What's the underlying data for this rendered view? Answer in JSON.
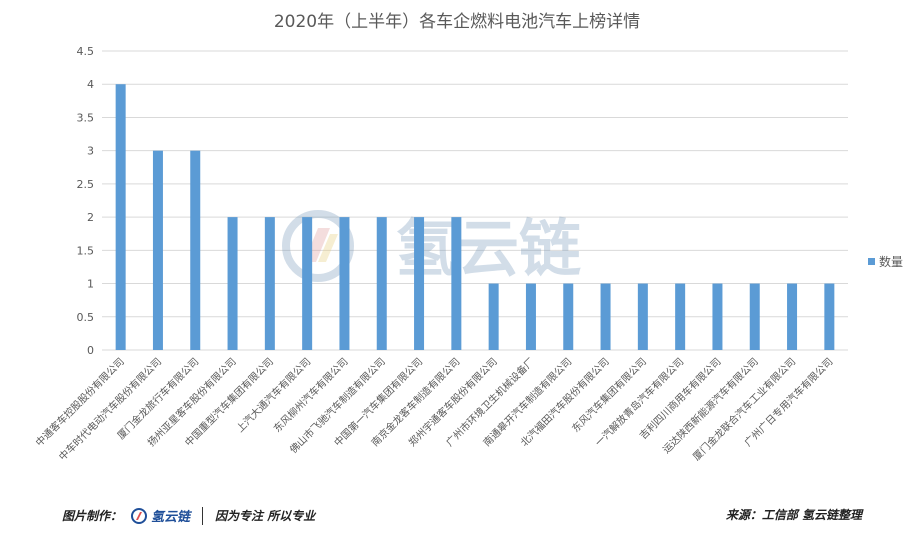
{
  "chart_data": {
    "type": "bar",
    "title": "2020年（上半年）各车企燃料电池汽车上榜详情",
    "xlabel": "",
    "ylabel": "",
    "ylim": [
      0,
      4.5
    ],
    "yticks": [
      "0",
      "0.5",
      "1",
      "1.5",
      "2",
      "2.5",
      "3",
      "3.5",
      "4",
      "4.5"
    ],
    "grid": true,
    "legend": "right",
    "categories": [
      "中通客车控股股份有限公司",
      "中车时代电动汽车股份有限公司",
      "厦门金龙旅行车有限公司",
      "扬州亚星客车股份有限公司",
      "中国重型汽车集团有限公司",
      "上汽大通汽车有限公司",
      "东风柳州汽车有限公司",
      "佛山市飞驰汽车制造有限公司",
      "中国第一汽车集团有限公司",
      "南京金龙客车制造有限公司",
      "郑州宇通客车股份有限公司",
      "广州市环境卫生机械设备厂",
      "南通皋开汽车制造有限公司",
      "北汽福田汽车股份有限公司",
      "东风汽车集团有限公司",
      "一汽解放青岛汽车有限公司",
      "吉利四川商用车有限公司",
      "运达陕西新能源汽车有限公司",
      "厦门金龙联合汽车工业有限公司",
      "广州广日专用汽车有限公司"
    ],
    "series": [
      {
        "name": "数量",
        "color": "#5b9bd5",
        "values": [
          4,
          3,
          3,
          2,
          2,
          2,
          2,
          2,
          2,
          2,
          1,
          1,
          1,
          1,
          1,
          1,
          1,
          1,
          1,
          1
        ]
      }
    ]
  },
  "watermark": {
    "text": "氢云链"
  },
  "footer": {
    "left_label": "图片制作：",
    "logo_text": "氢云链",
    "slogan": "因为专注  所以专业",
    "source": "来源：工信部  氢云链整理"
  }
}
